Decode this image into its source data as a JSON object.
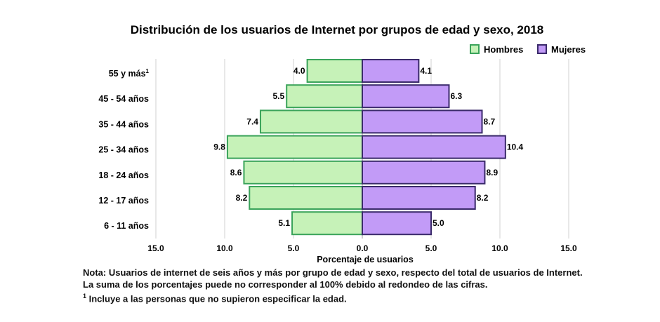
{
  "chart_data": {
    "type": "bar",
    "orientation": "horizontal-population-pyramid",
    "title": "Distribución de los usuarios de Internet por grupos de edad y sexo, 2018",
    "xlabel": "Porcentaje de usuarios",
    "ylabel": "",
    "xlim": [
      -15,
      15
    ],
    "x_ticks": [
      "15.0",
      "10.0",
      "5.0",
      "0.0",
      "5.0",
      "10.0",
      "15.0"
    ],
    "legend_position": "top-right",
    "categories": [
      "55 y más",
      "45 - 54 años",
      "35 - 44 años",
      "25 - 34 años",
      "18 - 24 años",
      "12 - 17 años",
      "6 - 11 años"
    ],
    "category_superscripts": [
      "1",
      "",
      "",
      "",
      "",
      "",
      ""
    ],
    "series": [
      {
        "name": "Hombres",
        "side": "left",
        "color": "#c6f2b8",
        "border": "#3aa35a",
        "values": [
          4.0,
          5.5,
          7.4,
          9.8,
          8.6,
          8.2,
          5.1
        ],
        "labels": [
          "4.0",
          "5.5",
          "7.4",
          "9.8",
          "8.6",
          "8.2",
          "5.1"
        ]
      },
      {
        "name": "Mujeres",
        "side": "right",
        "color": "#c29bf7",
        "border": "#3a2a6a",
        "values": [
          4.1,
          6.3,
          8.7,
          10.4,
          8.9,
          8.2,
          5.0
        ],
        "labels": [
          "4.1",
          "6.3",
          "8.7",
          "10.4",
          "8.9",
          "8.2",
          "5.0"
        ]
      }
    ],
    "grid": true
  },
  "notes": {
    "line1": "Nota: Usuarios de internet de seis años y más por grupo de edad y sexo, respecto del total de usuarios de Internet.",
    "line2": "La suma de los porcentajes puede no corresponder al 100% debido al redondeo de las cifras.",
    "line3_mark": "1",
    "line3": " Incluye a las personas que no supieron especificar la edad."
  }
}
